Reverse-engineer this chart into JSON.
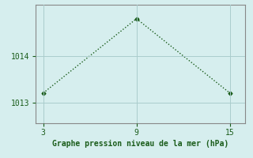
{
  "x": [
    3,
    9,
    15
  ],
  "y": [
    1013.2,
    1014.8,
    1013.2
  ],
  "xlim": [
    2.5,
    16
  ],
  "ylim": [
    1012.55,
    1015.1
  ],
  "xticks": [
    3,
    9,
    15
  ],
  "yticks": [
    1013,
    1014
  ],
  "xlabel": "Graphe pression niveau de la mer (hPa)",
  "line_color": "#1a5c1a",
  "marker": "D",
  "marker_size": 2.5,
  "bg_color": "#d6eeee",
  "grid_color": "#aacccc",
  "spine_color": "#888888",
  "tick_color": "#1a5c1a",
  "label_color": "#1a5c1a",
  "linestyle": "dotted",
  "linewidth": 1.0
}
